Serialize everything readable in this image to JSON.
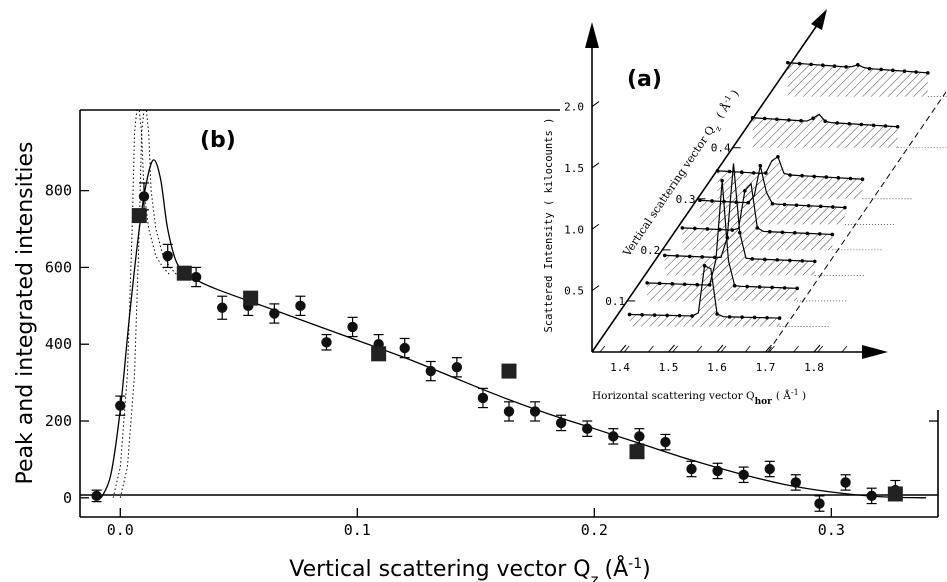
{
  "chart_data": [
    {
      "type": "scatter",
      "panel_label": "(b)",
      "xlabel_main": "Vertical scattering vector Q",
      "xlabel_sub": "z",
      "xlabel_unit": "(Å",
      "xlabel_sup": "-1",
      "xlabel_close": ")",
      "ylabel": "Peak and integrated intensities",
      "xlim": [
        -0.017,
        0.345
      ],
      "ylim": [
        -50,
        1010
      ],
      "x_ticks": [
        0.0,
        0.1,
        0.2,
        0.3
      ],
      "x_tick_labels": [
        "0.0",
        "0.1",
        "0.2",
        "0.3"
      ],
      "y_ticks": [
        0,
        200,
        400,
        600,
        800
      ],
      "y_tick_labels": [
        "0",
        "200",
        "400",
        "600",
        "800"
      ],
      "series": [
        {
          "marker": "circle-with-error-bars",
          "x": [
            -0.01,
            0.0,
            0.01,
            0.02,
            0.032,
            0.043,
            0.054,
            0.065,
            0.076,
            0.087,
            0.098,
            0.109,
            0.12,
            0.131,
            0.142,
            0.153,
            0.164,
            0.175,
            0.186,
            0.197,
            0.208,
            0.219,
            0.23,
            0.241,
            0.252,
            0.263,
            0.274,
            0.285,
            0.295,
            0.306,
            0.317,
            0.327
          ],
          "y": [
            5,
            240,
            785,
            630,
            575,
            495,
            500,
            480,
            500,
            405,
            445,
            400,
            390,
            330,
            340,
            260,
            225,
            225,
            195,
            180,
            160,
            160,
            145,
            75,
            70,
            60,
            75,
            40,
            -15,
            40,
            5,
            20
          ],
          "yerr": [
            15,
            25,
            35,
            30,
            25,
            30,
            25,
            25,
            25,
            20,
            25,
            25,
            25,
            25,
            25,
            25,
            25,
            25,
            20,
            20,
            20,
            20,
            20,
            20,
            20,
            20,
            20,
            20,
            20,
            20,
            20,
            25
          ]
        },
        {
          "marker": "filled-square",
          "x": [
            0.008,
            0.027,
            0.055,
            0.109,
            0.164,
            0.218,
            0.327
          ],
          "y": [
            735,
            585,
            520,
            375,
            330,
            120,
            10
          ]
        },
        {
          "marker": "solid-line",
          "x": [
            -0.008,
            -0.004,
            0.0,
            0.004,
            0.008,
            0.011,
            0.014,
            0.017,
            0.02,
            0.024,
            0.03,
            0.04,
            0.06,
            0.08,
            0.1,
            0.12,
            0.14,
            0.16,
            0.18,
            0.2,
            0.22,
            0.24,
            0.26,
            0.28,
            0.3,
            0.32,
            0.34
          ],
          "y": [
            0,
            60,
            230,
            480,
            700,
            820,
            880,
            830,
            700,
            610,
            575,
            545,
            500,
            455,
            410,
            365,
            315,
            265,
            220,
            180,
            140,
            100,
            65,
            35,
            15,
            3,
            0
          ]
        },
        {
          "marker": "dotted-line",
          "x": [
            0.0,
            0.003,
            0.006,
            0.008,
            0.009,
            0.01,
            0.011,
            0.012,
            0.013,
            0.015,
            0.018,
            0.021,
            0.024
          ],
          "y": [
            0,
            80,
            320,
            700,
            950,
            1010,
            1010,
            950,
            800,
            700,
            630,
            600,
            580
          ]
        }
      ]
    },
    {
      "type": "3d-waterfall",
      "panel_label": "(a)",
      "xlabel_main": "Horizontal scattering vector Q",
      "xlabel_sub": "hor",
      "xlabel_unit": "( Å",
      "xlabel_sup": "-1",
      "xlabel_close": " )",
      "ylabel": "Scattered Intensity  ( kilocounts )",
      "zlabel_main": "Vertical  scattering  vector  Q",
      "zlabel_sub": "z",
      "zlabel_unit": "( Å",
      "zlabel_sup": "-1",
      "zlabel_close": " )",
      "x_tick_labels": [
        "1.4",
        "1.5",
        "1.6",
        "1.7",
        "1.8"
      ],
      "y_tick_labels": [
        "0.5",
        "1.0",
        "1.5",
        "2.0"
      ],
      "z_tick_labels": [
        "0.1",
        "0.2",
        "0.3",
        "0.4"
      ],
      "traces_qz": [
        0.05,
        0.1,
        0.15,
        0.2,
        0.25,
        0.3,
        0.4,
        0.5
      ]
    }
  ]
}
